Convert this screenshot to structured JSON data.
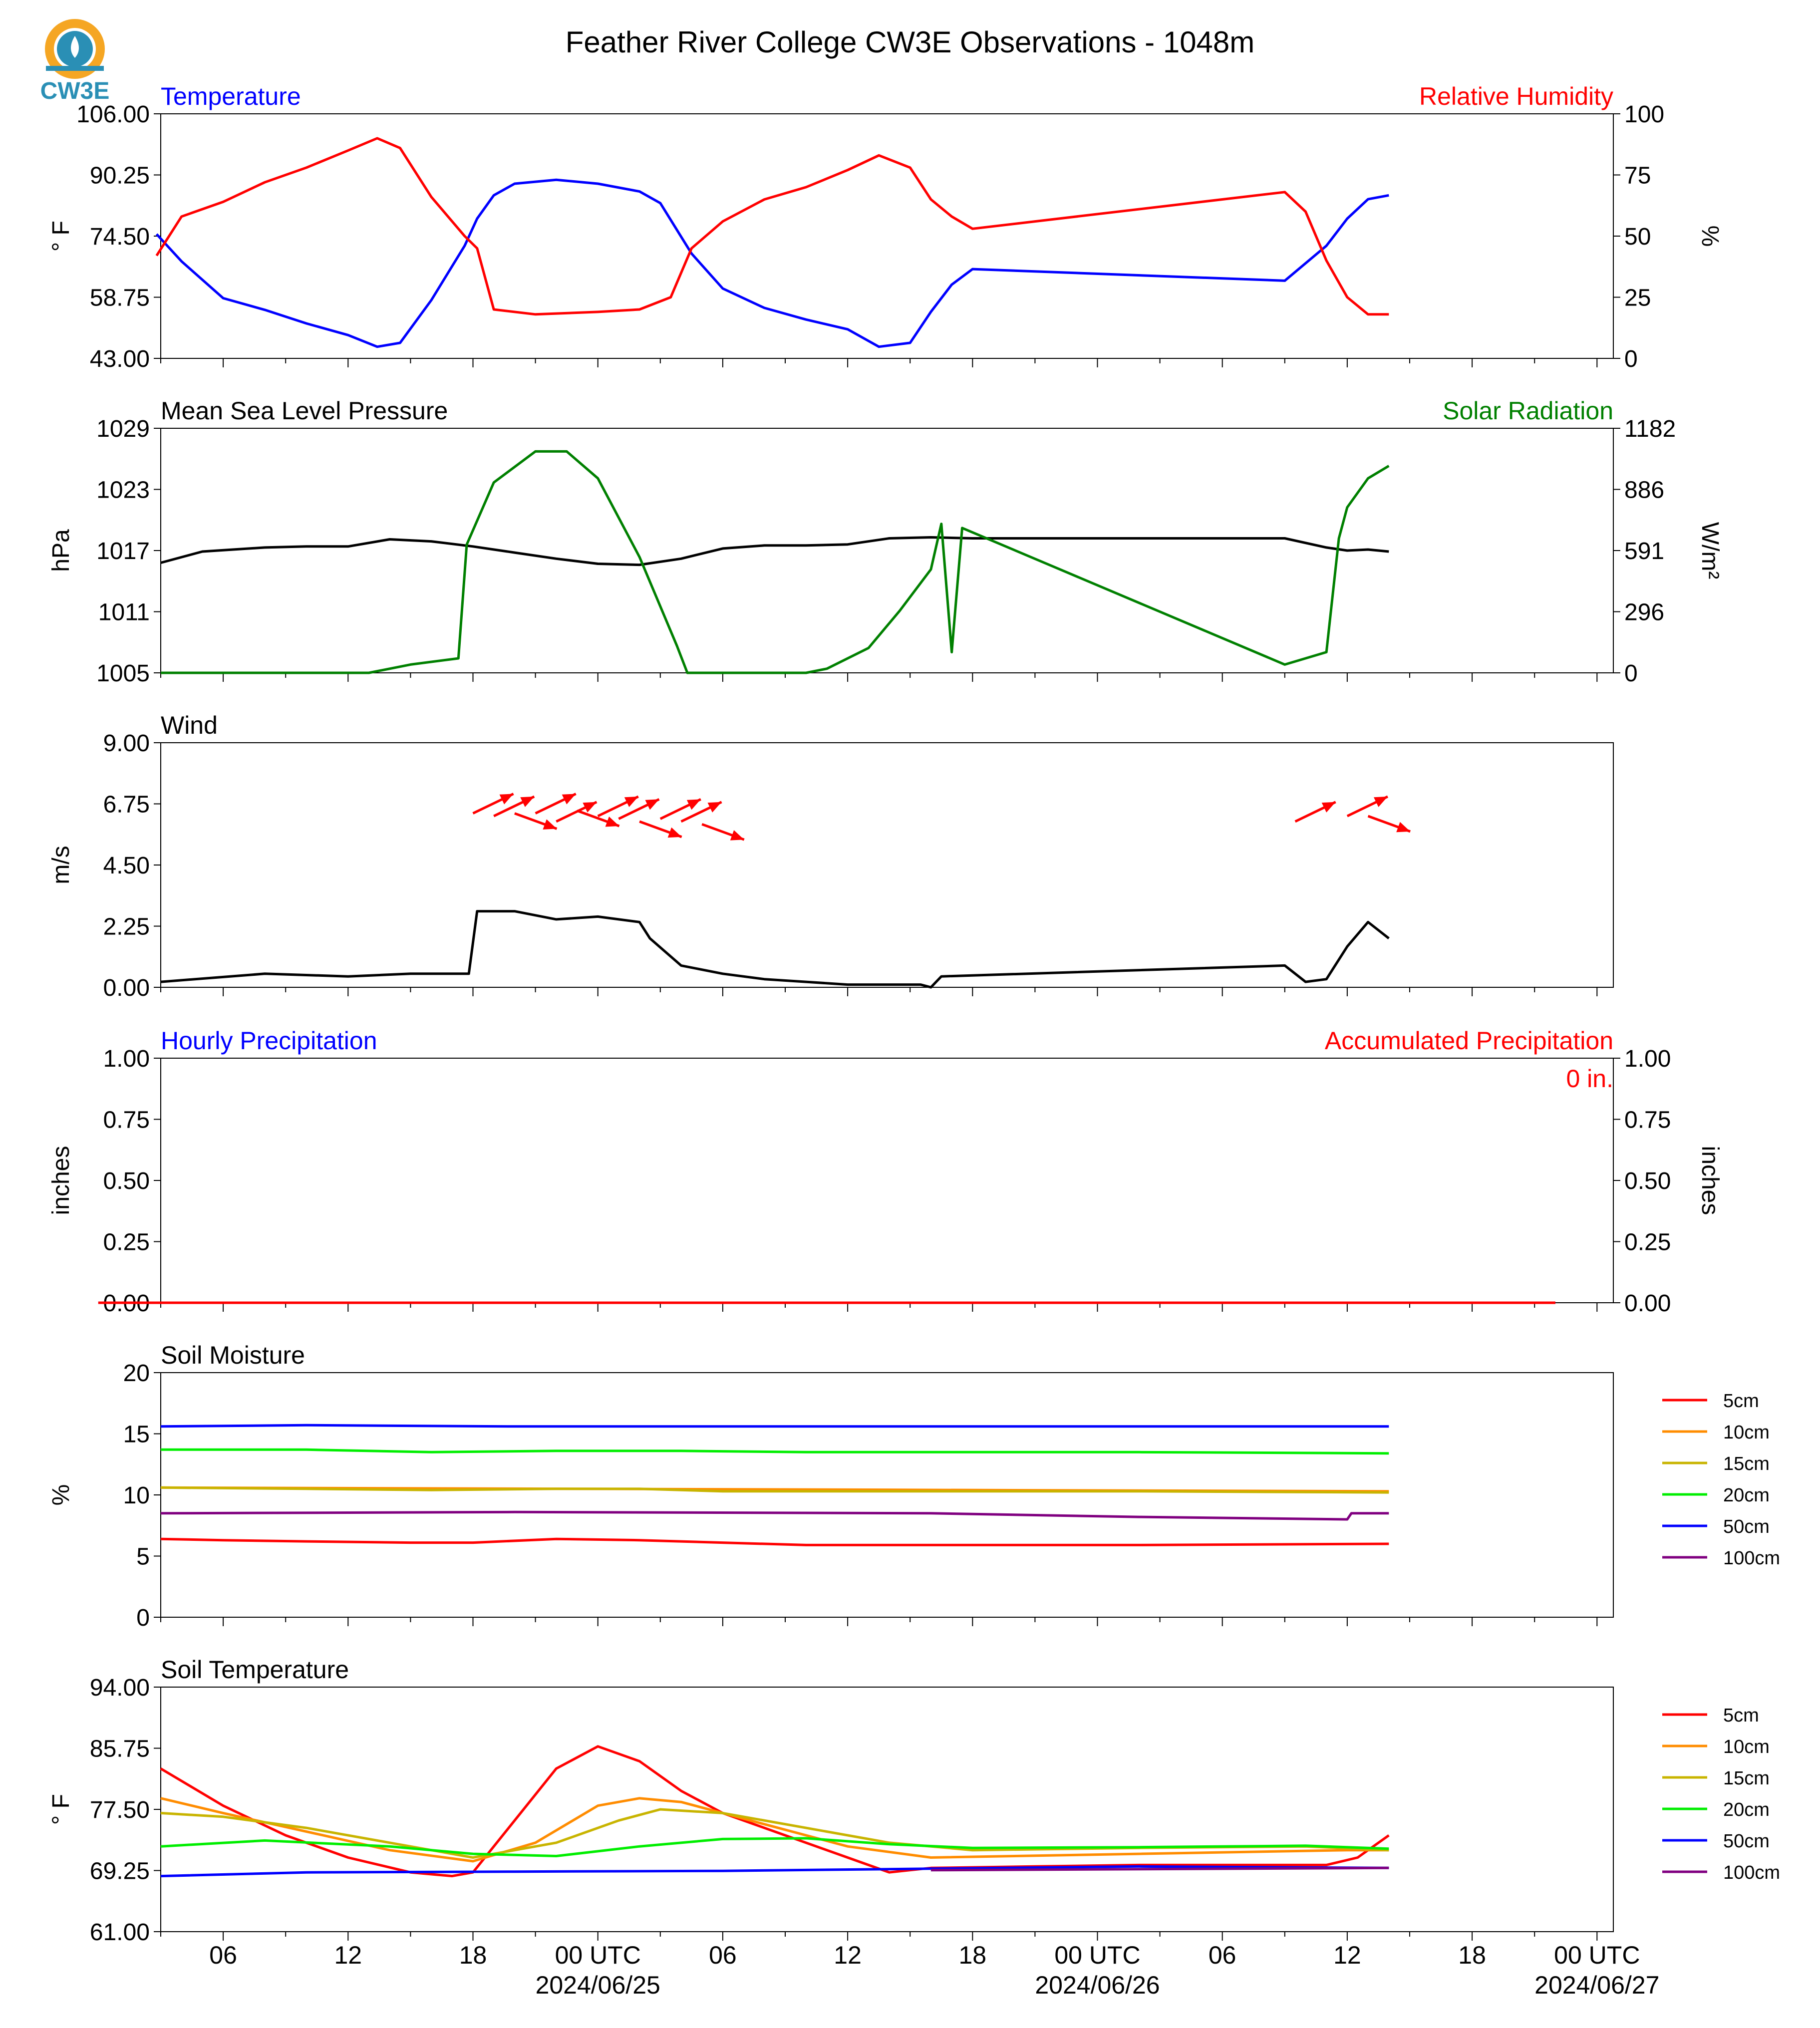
{
  "title": "Feather River College CW3E Observations - 1048m",
  "logo": {
    "text": "CW3E"
  },
  "time_axis": {
    "ticks": [
      "06",
      "12",
      "18",
      "00 UTC",
      "06",
      "12",
      "18",
      "00 UTC",
      "06",
      "12",
      "18",
      "00 UTC"
    ],
    "dates": [
      "2024/06/25",
      "2024/06/26",
      "2024/06/27"
    ]
  },
  "chart_data": [
    {
      "type": "line",
      "title_left": "Temperature",
      "title_right": "Relative Humidity",
      "ylabel": "° F",
      "ylabel_right": "%",
      "yticks": [
        "106.00",
        "90.25",
        "74.50",
        "58.75",
        "43.00"
      ],
      "yticks_right": [
        "100",
        "75",
        "50",
        "25",
        "0"
      ],
      "ylim": [
        43,
        106
      ],
      "ylim_right": [
        0,
        100
      ],
      "x_unit": "hours from 2024/06/24 00 UTC",
      "series": [
        {
          "name": "Temperature",
          "axis": "left",
          "color": "#0000ff",
          "x": [
            2.8,
            4,
            6,
            8,
            10,
            12,
            13.4,
            14.5,
            16,
            17.6,
            18.2,
            19,
            20,
            22,
            24,
            26,
            27,
            28.5,
            30,
            32,
            34,
            36,
            37.5,
            39,
            40,
            41,
            42,
            47,
            57,
            59,
            60,
            61,
            62
          ],
          "y": [
            75,
            68,
            58.5,
            55.5,
            52,
            49,
            46,
            47,
            58,
            72,
            79,
            85,
            88,
            89,
            88,
            86,
            83,
            70,
            61,
            56,
            53,
            50.5,
            46,
            47,
            55,
            62,
            66,
            65,
            63,
            72,
            79,
            84,
            85
          ]
        },
        {
          "name": "Relative Humidity",
          "axis": "right",
          "color": "#ff0000",
          "x": [
            2.8,
            4,
            6,
            8,
            10,
            12,
            13.4,
            14.5,
            16,
            17.6,
            18.2,
            19,
            21,
            24,
            26,
            27.5,
            28.5,
            30,
            32,
            34,
            36,
            37.5,
            39,
            40,
            41,
            42,
            57,
            58,
            59,
            60,
            61,
            62
          ],
          "y": [
            42,
            58,
            64,
            72,
            78,
            85,
            90,
            86,
            66,
            50,
            45,
            20,
            18,
            19,
            20,
            25,
            45,
            56,
            65,
            70,
            77,
            83,
            78,
            65,
            58,
            53,
            68,
            60,
            40,
            25,
            18,
            18
          ]
        }
      ]
    },
    {
      "type": "line",
      "title_left": "Mean Sea Level Pressure",
      "title_right": "Solar Radiation",
      "ylabel": "hPa",
      "ylabel_right": "W/m²",
      "yticks": [
        "1029",
        "1023",
        "1017",
        "1011",
        "1005"
      ],
      "yticks_right": [
        "1182",
        "886",
        "591",
        "296",
        "0"
      ],
      "ylim": [
        1005,
        1029
      ],
      "ylim_right": [
        0,
        1182
      ],
      "x_unit": "hours from 2024/06/24 00 UTC",
      "series": [
        {
          "name": "Mean Sea Level Pressure",
          "axis": "left",
          "color": "#000000",
          "x": [
            3,
            5,
            8,
            10,
            12,
            14,
            16,
            18,
            20,
            22,
            24,
            26,
            28,
            30,
            32,
            34,
            36,
            38,
            40,
            42,
            47,
            57,
            59,
            60,
            61,
            62
          ],
          "y": [
            1015.8,
            1016.9,
            1017.3,
            1017.4,
            1017.4,
            1018.1,
            1017.9,
            1017.4,
            1016.8,
            1016.2,
            1015.7,
            1015.6,
            1016.2,
            1017.2,
            1017.5,
            1017.5,
            1017.6,
            1018.2,
            1018.3,
            1018.2,
            1018.2,
            1018.2,
            1017.3,
            1017.0,
            1017.1,
            1016.9
          ]
        },
        {
          "name": "Solar Radiation",
          "axis": "right",
          "color": "#008000",
          "x": [
            3,
            13,
            15,
            17.3,
            17.7,
            19,
            21,
            22.5,
            24,
            26,
            27.8,
            28.3,
            30,
            34,
            35,
            37,
            38.5,
            40,
            40.5,
            41,
            41.5,
            57,
            59,
            59.6,
            60,
            61,
            62
          ],
          "y": [
            0,
            0,
            40,
            70,
            620,
            920,
            1070,
            1070,
            940,
            560,
            130,
            0,
            0,
            0,
            20,
            120,
            300,
            500,
            720,
            100,
            700,
            40,
            100,
            650,
            800,
            940,
            1000
          ]
        }
      ]
    },
    {
      "type": "line",
      "title_left": "Wind",
      "ylabel": "m/s",
      "yticks": [
        "9.00",
        "6.75",
        "4.50",
        "2.25",
        "0.00"
      ],
      "ylim": [
        0,
        9
      ],
      "x_unit": "hours from 2024/06/24 00 UTC",
      "series": [
        {
          "name": "Wind Speed",
          "color": "#000000",
          "x": [
            3,
            8,
            12,
            15,
            17.8,
            18.2,
            20,
            22,
            24,
            26,
            26.5,
            28,
            30,
            32,
            34,
            36,
            38,
            39.5,
            40,
            40.5,
            57,
            58,
            59,
            60,
            61,
            61.5,
            62
          ],
          "y": [
            0.2,
            0.5,
            0.4,
            0.5,
            0.5,
            2.8,
            2.8,
            2.5,
            2.6,
            2.4,
            1.8,
            0.8,
            0.5,
            0.3,
            0.2,
            0.1,
            0.1,
            0.1,
            0.0,
            0.4,
            0.8,
            0.2,
            0.3,
            1.5,
            2.4,
            2.1,
            1.8
          ]
        },
        {
          "name": "Wind Barbs",
          "color": "#ff0000",
          "x": [
            18,
            19,
            20,
            21,
            22,
            23,
            24,
            25,
            26,
            27,
            28,
            29,
            57.5,
            60,
            61
          ],
          "y": [
            6.4,
            6.3,
            6.4,
            6.4,
            6.1,
            6.5,
            6.3,
            6.2,
            6.1,
            6.2,
            6.1,
            6.0,
            6.1,
            6.3,
            6.3
          ]
        }
      ]
    },
    {
      "type": "line",
      "title_left": "Hourly Precipitation",
      "title_right": "Accumulated Precipitation",
      "annotation": "0 in.",
      "ylabel": "inches",
      "ylabel_right": "inches",
      "yticks": [
        "1.00",
        "0.75",
        "0.50",
        "0.25",
        "0.00"
      ],
      "yticks_right": [
        "1.00",
        "0.75",
        "0.50",
        "0.25",
        "0.00"
      ],
      "ylim": [
        0,
        1
      ],
      "x_unit": "hours from 2024/06/24 00 UTC",
      "series": [
        {
          "name": "Hourly Precipitation",
          "color": "#0000ff",
          "x": [
            0,
            70
          ],
          "y": [
            0,
            0
          ]
        },
        {
          "name": "Accumulated Precipitation",
          "color": "#ff0000",
          "x": [
            0,
            70
          ],
          "y": [
            0,
            0
          ]
        }
      ]
    },
    {
      "type": "line",
      "title_left": "Soil Moisture",
      "ylabel": "%",
      "yticks": [
        "20",
        "15",
        "10",
        "5",
        "0"
      ],
      "ylim": [
        0,
        20
      ],
      "x_unit": "hours from 2024/06/24 00 UTC",
      "legend": [
        "5cm",
        "10cm",
        "15cm",
        "20cm",
        "50cm",
        "100cm"
      ],
      "series": [
        {
          "name": "5cm",
          "color": "#ff0000",
          "x": [
            3,
            6,
            10,
            15,
            18,
            22,
            26,
            30,
            34,
            40,
            50,
            62
          ],
          "y": [
            6.4,
            6.3,
            6.2,
            6.1,
            6.1,
            6.4,
            6.3,
            6.1,
            5.9,
            5.9,
            5.9,
            6.0
          ]
        },
        {
          "name": "10cm",
          "color": "#ff8c00",
          "x": [
            3,
            62
          ],
          "y": [
            10.6,
            10.3
          ]
        },
        {
          "name": "15cm",
          "color": "#c8b400",
          "x": [
            3,
            10,
            16,
            22,
            26,
            30,
            40,
            50,
            62
          ],
          "y": [
            10.6,
            10.5,
            10.4,
            10.5,
            10.5,
            10.3,
            10.3,
            10.3,
            10.2
          ]
        },
        {
          "name": "20cm",
          "color": "#00ee00",
          "x": [
            3,
            10,
            16,
            22,
            28,
            34,
            40,
            50,
            62
          ],
          "y": [
            13.7,
            13.7,
            13.5,
            13.6,
            13.6,
            13.5,
            13.5,
            13.5,
            13.4
          ]
        },
        {
          "name": "50cm",
          "color": "#0000ff",
          "x": [
            3,
            10,
            20,
            30,
            40,
            50,
            62
          ],
          "y": [
            15.6,
            15.7,
            15.6,
            15.6,
            15.6,
            15.6,
            15.6
          ]
        },
        {
          "name": "100cm",
          "color": "#800080",
          "x": [
            3,
            20,
            40,
            50,
            60,
            60.2,
            62
          ],
          "y": [
            8.5,
            8.6,
            8.5,
            8.2,
            8.0,
            8.5,
            8.5
          ]
        }
      ]
    },
    {
      "type": "line",
      "title_left": "Soil Temperature",
      "ylabel": "° F",
      "yticks": [
        "94.00",
        "85.75",
        "77.50",
        "69.25",
        "61.00"
      ],
      "ylim": [
        61,
        94
      ],
      "x_unit": "hours from 2024/06/24 00 UTC",
      "legend": [
        "5cm",
        "10cm",
        "15cm",
        "20cm",
        "50cm",
        "100cm"
      ],
      "series": [
        {
          "name": "5cm",
          "color": "#ff0000",
          "x": [
            3,
            6,
            9,
            12,
            15,
            17,
            18,
            20,
            22,
            24,
            26,
            28,
            30,
            33,
            36,
            38,
            40,
            45,
            50,
            55,
            59,
            60.5,
            62
          ],
          "y": [
            83,
            78,
            74,
            71,
            69,
            68.5,
            69,
            76,
            83,
            86,
            84,
            80,
            77,
            74,
            71,
            69,
            69.6,
            69.8,
            70,
            70,
            70,
            71,
            74
          ]
        },
        {
          "name": "10cm",
          "color": "#ff8c00",
          "x": [
            3,
            6,
            10,
            14,
            18,
            21,
            24,
            26,
            28,
            32,
            36,
            40,
            50,
            60,
            62
          ],
          "y": [
            79,
            77,
            74.5,
            72,
            70.5,
            73,
            78,
            79,
            78.5,
            75.5,
            72.5,
            71,
            71.5,
            72,
            72
          ]
        },
        {
          "name": "15cm",
          "color": "#c8b400",
          "x": [
            3,
            6,
            10,
            14,
            18,
            22,
            25,
            27,
            30,
            34,
            38,
            42,
            50,
            58,
            62
          ],
          "y": [
            77,
            76.5,
            75,
            73,
            71,
            73,
            76,
            77.5,
            77,
            75,
            73,
            72,
            72.3,
            72.5,
            72
          ]
        },
        {
          "name": "20cm",
          "color": "#00ee00",
          "x": [
            3,
            8,
            14,
            18,
            22,
            26,
            30,
            34,
            38,
            42,
            50,
            58,
            62
          ],
          "y": [
            72.5,
            73.3,
            72.5,
            71.5,
            71.2,
            72.5,
            73.5,
            73.6,
            72.8,
            72.3,
            72.4,
            72.6,
            72.2
          ]
        },
        {
          "name": "50cm",
          "color": "#0000ff",
          "x": [
            3,
            10,
            20,
            30,
            40,
            50,
            62
          ],
          "y": [
            68.5,
            69.0,
            69.1,
            69.2,
            69.5,
            69.8,
            69.6
          ]
        },
        {
          "name": "100cm",
          "color": "#800080",
          "x": [
            40,
            62
          ],
          "y": [
            69.3,
            69.6
          ]
        }
      ]
    }
  ]
}
